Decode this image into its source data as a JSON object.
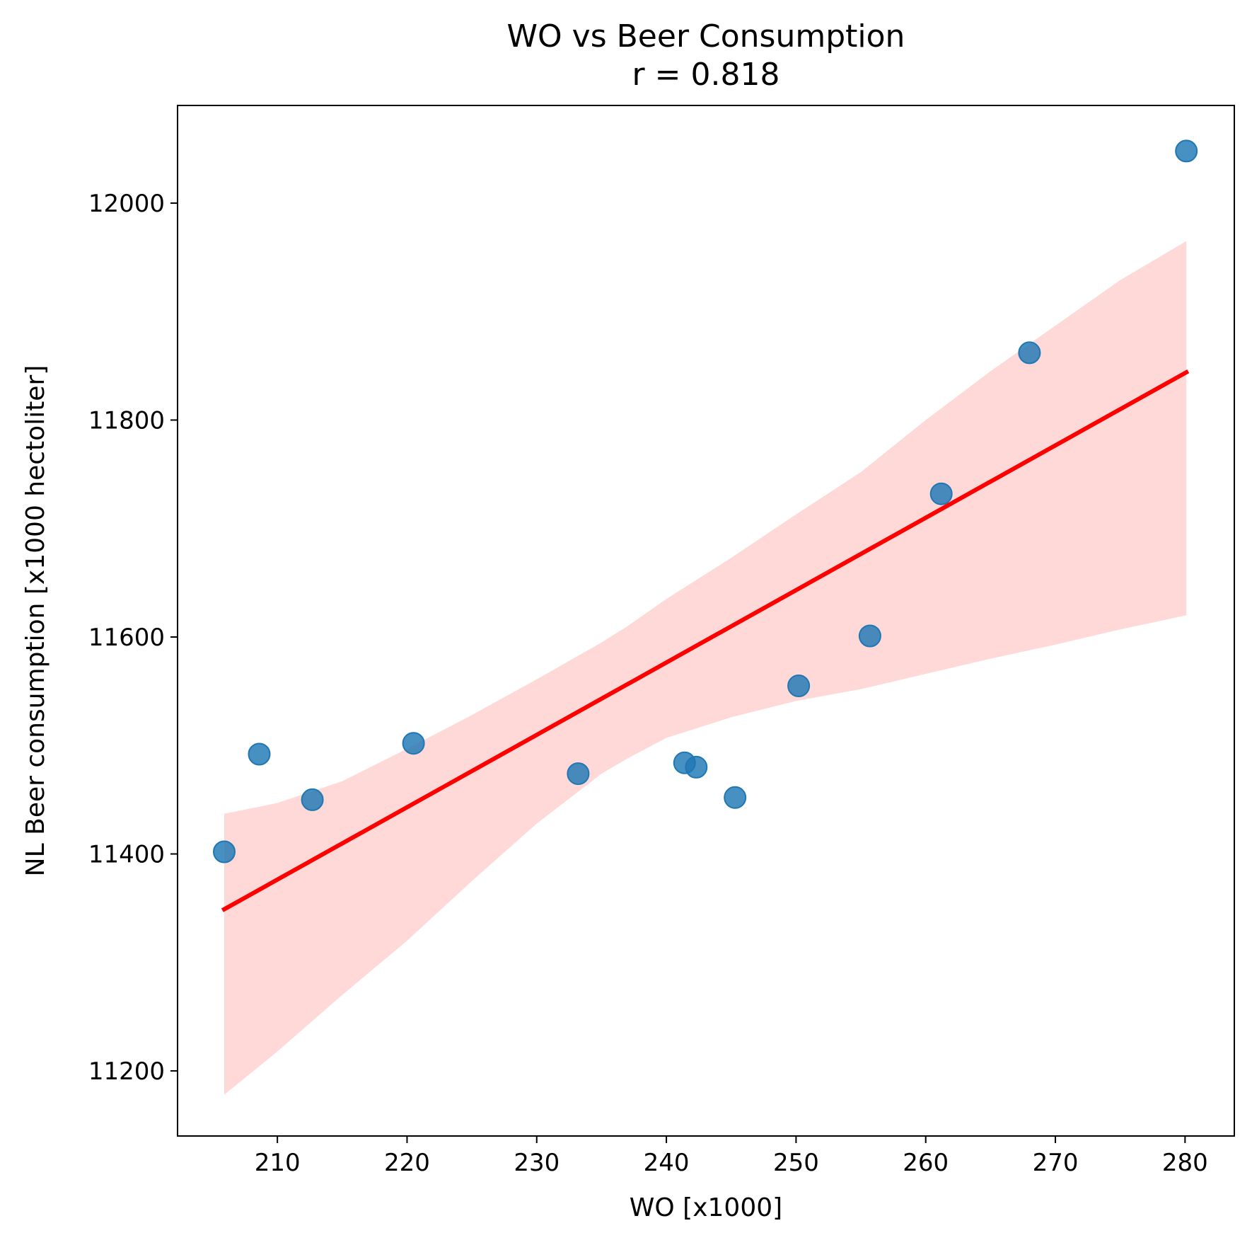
{
  "chart_data": {
    "type": "scatter",
    "title": "WO vs Beer Consumption",
    "subtitle": "r = 0.818",
    "xlabel": "WO [x1000]",
    "ylabel": "NL Beer consumption [x1000 hectoliter]",
    "xlim": [
      202.3,
      283.8
    ],
    "ylim": [
      11140,
      12090
    ],
    "xticks": [
      210,
      220,
      230,
      240,
      250,
      260,
      270,
      280
    ],
    "yticks": [
      11200,
      11400,
      11600,
      11800,
      12000
    ],
    "grid": false,
    "legend": "none",
    "points": [
      {
        "x": 205.9,
        "y": 11402
      },
      {
        "x": 208.6,
        "y": 11492
      },
      {
        "x": 212.7,
        "y": 11450
      },
      {
        "x": 220.5,
        "y": 11502
      },
      {
        "x": 233.2,
        "y": 11474
      },
      {
        "x": 241.4,
        "y": 11484
      },
      {
        "x": 242.3,
        "y": 11480
      },
      {
        "x": 245.3,
        "y": 11452
      },
      {
        "x": 250.2,
        "y": 11555
      },
      {
        "x": 255.7,
        "y": 11601
      },
      {
        "x": 261.2,
        "y": 11732
      },
      {
        "x": 268.0,
        "y": 11862
      },
      {
        "x": 280.1,
        "y": 12048
      }
    ],
    "regression_line": {
      "x": [
        205.9,
        280.1
      ],
      "y": [
        11349,
        11844
      ]
    },
    "confidence_band": {
      "x": [
        205.9,
        210,
        215,
        220,
        225,
        230,
        235,
        237,
        240,
        245,
        250,
        255,
        260,
        265,
        270,
        275,
        280.1
      ],
      "upper": [
        11437,
        11447,
        11467,
        11497,
        11528,
        11561,
        11595,
        11610,
        11635,
        11673,
        11713,
        11752,
        11800,
        11845,
        11887,
        11929,
        11965
      ],
      "lower": [
        11178,
        11218,
        11270,
        11320,
        11375,
        11428,
        11474,
        11488,
        11507,
        11526,
        11541,
        11552,
        11566,
        11580,
        11593,
        11607,
        11620
      ]
    },
    "colors": {
      "points": "#1f77b4",
      "line": "#ff0000",
      "band": "#ff9999"
    }
  }
}
